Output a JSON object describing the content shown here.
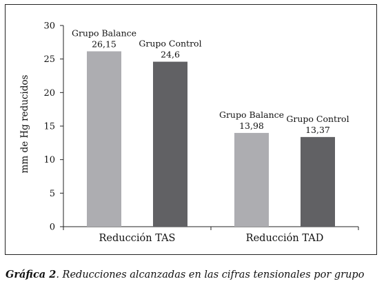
{
  "chart_data": {
    "type": "bar",
    "categories": [
      "Reducción TAS",
      "Reducción TAD"
    ],
    "series": [
      {
        "name": "Grupo Balance",
        "values": [
          26.15,
          13.98
        ],
        "labels": [
          "26,15",
          "13,98"
        ],
        "color": "#adadb1"
      },
      {
        "name": "Grupo Control",
        "values": [
          24.6,
          13.37
        ],
        "labels": [
          "24,6",
          "13,37"
        ],
        "color": "#616164"
      }
    ],
    "ylabel": "mm de Hg reducidos",
    "xlabel": "",
    "ylim": [
      0,
      30
    ],
    "yticks": [
      "0",
      "5",
      "10",
      "15",
      "20",
      "25",
      "30"
    ],
    "grid": false,
    "legend": "none"
  },
  "caption": {
    "prefix": "Gráfica 2",
    "text": ". Reducciones alcanzadas en las cifras tensionales por grupo"
  }
}
